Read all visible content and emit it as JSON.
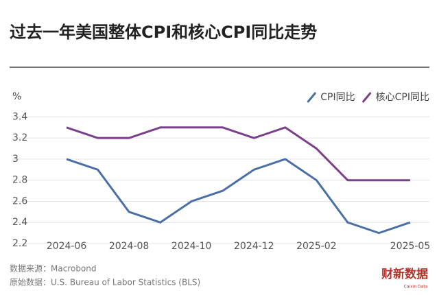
{
  "chart_data": {
    "type": "line",
    "title": "过去一年美国整体CPI和核心CPI同比走势",
    "y_label": "%",
    "categories": [
      "2024-06",
      null,
      "2024-08",
      null,
      "2024-10",
      null,
      "2024-12",
      null,
      "2025-02",
      null,
      null,
      "2025-05"
    ],
    "series": [
      {
        "name": "CPI同比",
        "color": "#4a6fa5",
        "values": [
          3.0,
          2.9,
          2.5,
          2.4,
          2.6,
          2.7,
          2.9,
          3.0,
          2.8,
          2.4,
          2.3,
          2.4
        ]
      },
      {
        "name": "核心CPI同比",
        "color": "#7b3f8c",
        "values": [
          3.3,
          3.2,
          3.2,
          3.3,
          3.3,
          3.3,
          3.2,
          3.3,
          3.1,
          2.8,
          2.8,
          2.8
        ]
      }
    ],
    "ylim": [
      2.2,
      3.5
    ],
    "yticks": [
      2.2,
      2.4,
      2.6,
      2.8,
      3,
      3.2,
      3.4
    ],
    "grid": true,
    "legend": "top-right",
    "source": "数据来源：Macrobond",
    "original_source": "原始数据：U.S. Bureau of Labor Statistics (BLS)",
    "logo": "财新数据",
    "logo_sub": "Caixin Data"
  }
}
